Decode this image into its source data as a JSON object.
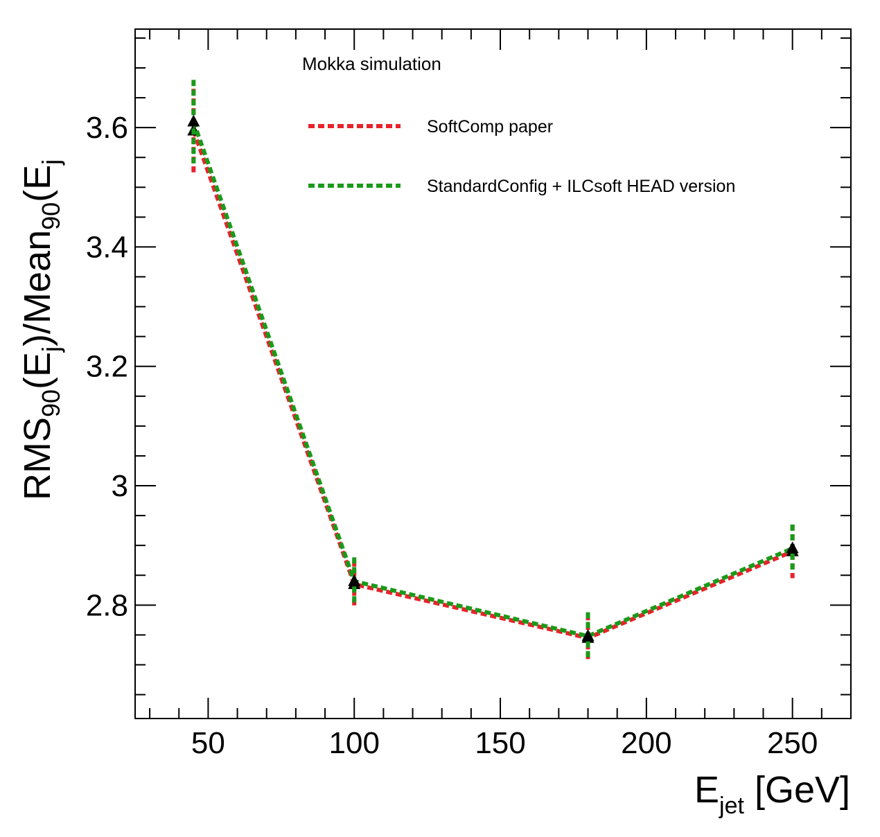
{
  "chart_data": {
    "type": "line",
    "title": "",
    "annotation": "Mokka simulation",
    "xlabel": {
      "main": "E",
      "sub": "jet",
      "unit": " [GeV]"
    },
    "ylabel": {
      "parts": [
        "RMS",
        "90",
        "(E",
        "j",
        ")/Mean",
        "90",
        "(E",
        "j",
        ") [%]"
      ]
    },
    "xlim": [
      25,
      270
    ],
    "ylim": [
      2.61,
      3.765
    ],
    "xticks": [
      50,
      100,
      150,
      200,
      250
    ],
    "yticks": [
      2.8,
      3,
      3.2,
      3.4,
      3.6
    ],
    "xtick_labels": [
      "50",
      "100",
      "150",
      "200",
      "250"
    ],
    "ytick_labels": [
      "2.8",
      "3",
      "3.2",
      "3.4",
      "3.6"
    ],
    "legend_position": "top-center",
    "series": [
      {
        "name": "SoftComp paper",
        "color": "#e8222a",
        "x": [
          45,
          100,
          180,
          250
        ],
        "y": [
          3.595,
          2.835,
          2.745,
          2.89
        ],
        "err": [
          0.07,
          0.04,
          0.04,
          0.045
        ]
      },
      {
        "name": "StandardConfig + ILCsoft HEAD version",
        "color": "#1a9a1a",
        "x": [
          45,
          100,
          180,
          250
        ],
        "y": [
          3.61,
          2.84,
          2.748,
          2.895
        ],
        "err": [
          0.07,
          0.04,
          0.04,
          0.04
        ]
      }
    ]
  }
}
